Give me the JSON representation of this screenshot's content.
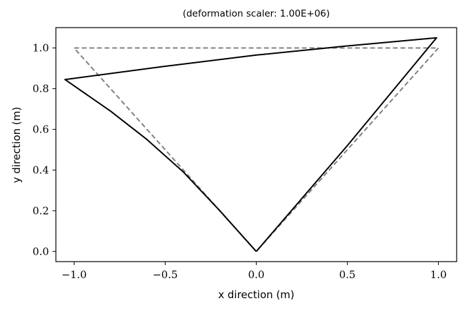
{
  "chart_data": {
    "type": "line",
    "title": "(deformation scaler: 1.00E+06)",
    "xlabel": "x direction (m)",
    "ylabel": "y direction (m)",
    "xlim": [
      -1.1,
      1.1
    ],
    "ylim": [
      -0.05,
      1.1
    ],
    "xticks": [
      -1.0,
      -0.5,
      0.0,
      0.5,
      1.0
    ],
    "xtick_labels": [
      "−1.0",
      "−0.5",
      "0.0",
      "0.5",
      "1.0"
    ],
    "yticks": [
      0.0,
      0.2,
      0.4,
      0.6,
      0.8,
      1.0
    ],
    "ytick_labels": [
      "0.0",
      "0.2",
      "0.4",
      "0.6",
      "0.8",
      "1.0"
    ],
    "grid": false,
    "series": [
      {
        "style": "dashed",
        "color": "#808080",
        "points": [
          [
            0.0,
            0.0
          ],
          [
            -1.0,
            1.0
          ],
          [
            1.0,
            1.0
          ],
          [
            0.0,
            0.0
          ]
        ]
      },
      {
        "style": "solid",
        "color": "#000000",
        "points": [
          [
            0.0,
            0.0
          ],
          [
            -0.2,
            0.2
          ],
          [
            -0.4,
            0.39
          ],
          [
            -0.6,
            0.55
          ],
          [
            -0.8,
            0.69
          ],
          [
            -1.05,
            0.845
          ],
          [
            -0.5,
            0.91
          ],
          [
            0.0,
            0.965
          ],
          [
            0.5,
            1.01
          ],
          [
            0.99,
            1.05
          ],
          [
            0.5,
            0.52
          ],
          [
            0.0,
            0.0
          ]
        ]
      }
    ]
  }
}
